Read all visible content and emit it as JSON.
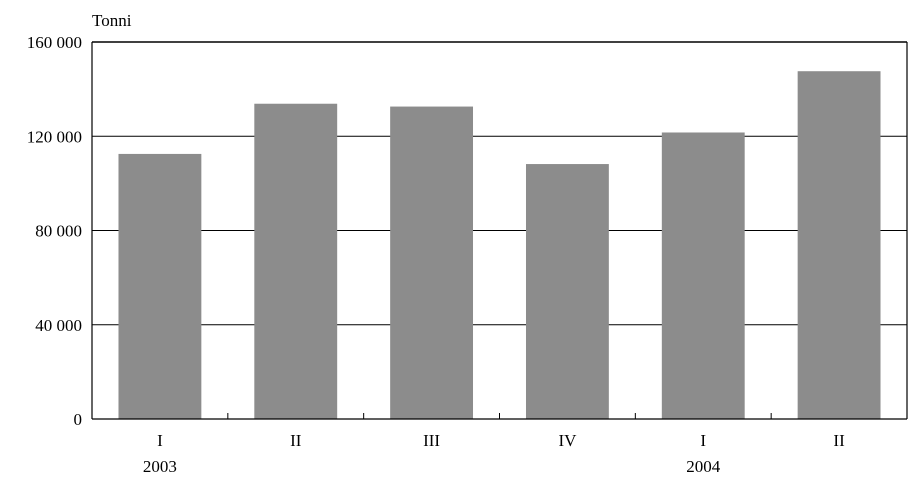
{
  "chart_data": {
    "type": "bar",
    "ylabel": "Tonni",
    "categories": [
      "I",
      "II",
      "III",
      "IV",
      "I",
      "II"
    ],
    "year_labels": [
      {
        "label": "2003",
        "category_index": 0
      },
      {
        "label": "2004",
        "category_index": 4
      }
    ],
    "values": [
      112500,
      133800,
      132600,
      108200,
      121600,
      147600
    ],
    "ylim": [
      0,
      160000
    ],
    "yticks": [
      0,
      40000,
      80000,
      120000,
      160000
    ],
    "ytick_labels": [
      "0",
      "40 000",
      "80 000",
      "120 000",
      "160 000"
    ],
    "grid": true,
    "bar_color": "#8c8c8c"
  }
}
